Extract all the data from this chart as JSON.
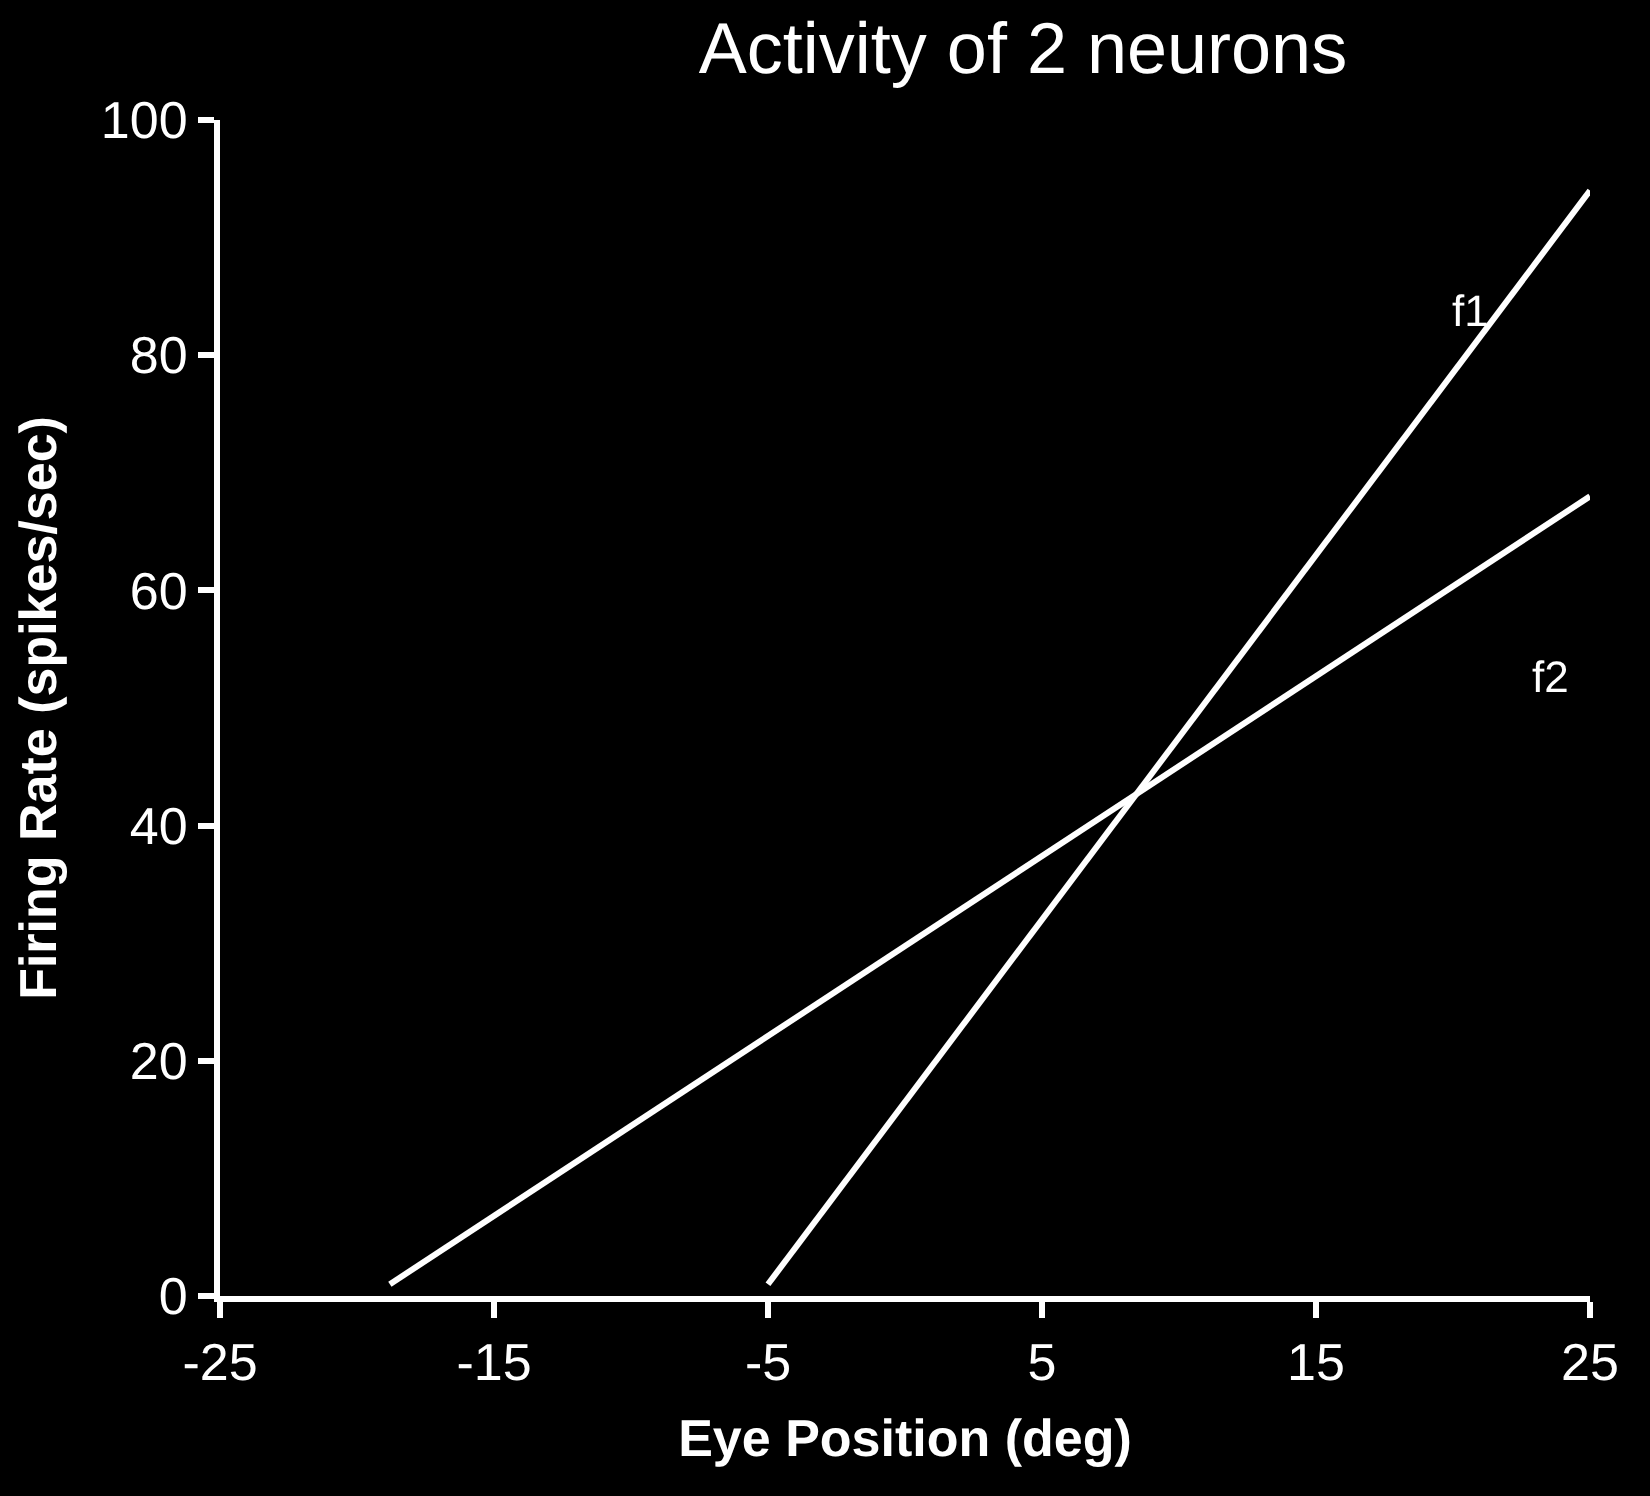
{
  "chart_data": {
    "type": "line",
    "title": "Activity of 2 neurons",
    "xlabel": "Eye Position (deg)",
    "ylabel": "Firing Rate (spikes/sec)",
    "xlim": [
      -25,
      25
    ],
    "xticks": [
      -25,
      -15,
      -5,
      5,
      15,
      25
    ],
    "ylim": [
      0,
      100
    ],
    "yticks": [
      0,
      20,
      40,
      60,
      80,
      100
    ],
    "grid": false,
    "legend": false,
    "marker": "none",
    "series": [
      {
        "name": "f1",
        "color": "#ffffff",
        "x": [
          -5,
          25
        ],
        "values": [
          1,
          94
        ]
      },
      {
        "name": "f2",
        "color": "#ffffff",
        "x": [
          -18.8,
          25
        ],
        "values": [
          1,
          68
        ]
      }
    ]
  }
}
